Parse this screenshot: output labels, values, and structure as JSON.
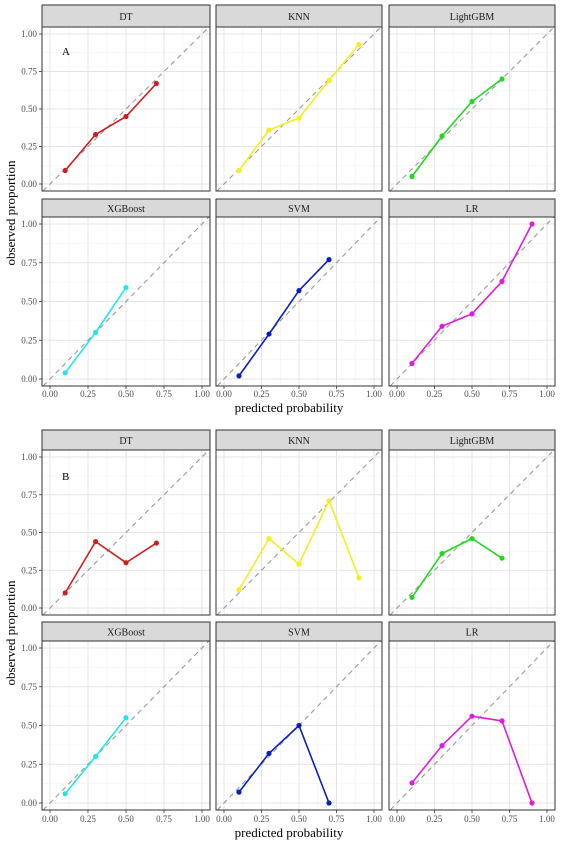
{
  "figure": {
    "xlabel": "predicted probability",
    "ylabel": "observed proportion",
    "xticks": [
      "0.00",
      "0.25",
      "0.50",
      "0.75",
      "1.00"
    ],
    "yticks": [
      "0.00",
      "0.25",
      "0.50",
      "0.75",
      "1.00"
    ]
  },
  "chart_data": [
    {
      "type": "line",
      "panel_tag": "A",
      "xlabel": "predicted probability",
      "ylabel": "observed proportion",
      "xlim": [
        0,
        1
      ],
      "ylim": [
        0,
        1
      ],
      "reference_line": "dashed diagonal y = x",
      "grid": true,
      "series": [
        {
          "name": "DT",
          "color": "#cc1f1f",
          "x": [
            0.1,
            0.3,
            0.5,
            0.7
          ],
          "y": [
            0.09,
            0.33,
            0.45,
            0.67
          ]
        },
        {
          "name": "KNN",
          "color": "#f2ef1d",
          "x": [
            0.1,
            0.3,
            0.5,
            0.7,
            0.9
          ],
          "y": [
            0.09,
            0.36,
            0.44,
            0.69,
            0.93
          ]
        },
        {
          "name": "LightGBM",
          "color": "#21d921",
          "x": [
            0.1,
            0.3,
            0.5,
            0.7
          ],
          "y": [
            0.05,
            0.32,
            0.55,
            0.7
          ]
        },
        {
          "name": "XGBoost",
          "color": "#24e5eb",
          "x": [
            0.1,
            0.3,
            0.5
          ],
          "y": [
            0.04,
            0.3,
            0.59
          ]
        },
        {
          "name": "SVM",
          "color": "#0b1fba",
          "x": [
            0.1,
            0.3,
            0.5,
            0.7
          ],
          "y": [
            0.02,
            0.29,
            0.57,
            0.77
          ]
        },
        {
          "name": "LR",
          "color": "#dd1ddd",
          "x": [
            0.1,
            0.3,
            0.5,
            0.7,
            0.9
          ],
          "y": [
            0.1,
            0.34,
            0.42,
            0.63,
            1.0
          ]
        }
      ]
    },
    {
      "type": "line",
      "panel_tag": "B",
      "xlabel": "predicted probability",
      "ylabel": "observed proportion",
      "xlim": [
        0,
        1
      ],
      "ylim": [
        0,
        1
      ],
      "reference_line": "dashed diagonal y = x",
      "grid": true,
      "series": [
        {
          "name": "DT",
          "color": "#cc1f1f",
          "x": [
            0.1,
            0.3,
            0.5,
            0.7
          ],
          "y": [
            0.1,
            0.44,
            0.3,
            0.43
          ]
        },
        {
          "name": "KNN",
          "color": "#f2ef1d",
          "x": [
            0.1,
            0.3,
            0.5,
            0.7,
            0.9
          ],
          "y": [
            0.12,
            0.46,
            0.29,
            0.71,
            0.2
          ]
        },
        {
          "name": "LightGBM",
          "color": "#21d921",
          "x": [
            0.1,
            0.3,
            0.5,
            0.7
          ],
          "y": [
            0.07,
            0.36,
            0.46,
            0.33
          ]
        },
        {
          "name": "XGBoost",
          "color": "#24e5eb",
          "x": [
            0.1,
            0.3,
            0.5
          ],
          "y": [
            0.06,
            0.3,
            0.55
          ]
        },
        {
          "name": "SVM",
          "color": "#0b1fba",
          "x": [
            0.1,
            0.3,
            0.5,
            0.7
          ],
          "y": [
            0.07,
            0.32,
            0.5,
            0.0
          ]
        },
        {
          "name": "LR",
          "color": "#dd1ddd",
          "x": [
            0.1,
            0.3,
            0.5,
            0.7,
            0.9
          ],
          "y": [
            0.13,
            0.37,
            0.56,
            0.53,
            0.0
          ]
        }
      ]
    }
  ]
}
